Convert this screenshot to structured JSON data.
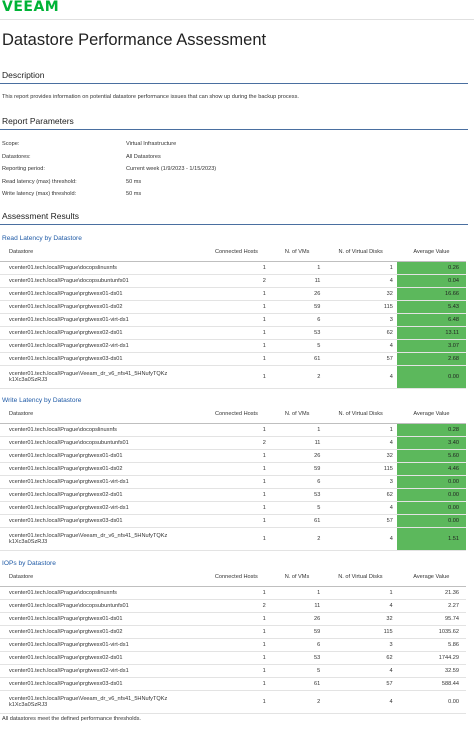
{
  "brand": "VEEAM",
  "title": "Datastore Performance Assessment",
  "description": {
    "heading": "Description",
    "text": "This report provides information on potential datastore performance issues that can show up during the backup process."
  },
  "parameters": {
    "heading": "Report Parameters",
    "rows": [
      {
        "key": "Scope:",
        "value": "Virtual Infrastructure"
      },
      {
        "key": "Datastores:",
        "value": "All Datastores"
      },
      {
        "key": "Reporting period:",
        "value": "Current week (1/9/2023 - 1/15/2023)"
      },
      {
        "key": "Read latency (max) threshold:",
        "value": "50 ms"
      },
      {
        "key": "Write latency (max) threshold:",
        "value": "50 ms"
      }
    ]
  },
  "results_heading": "Assessment Results",
  "columns": [
    "Datastore",
    "Connected Hosts",
    "N. of VMs",
    "N. of Virtual Disks",
    "Average Value"
  ],
  "highlight_color": "#5cb85c",
  "tables": [
    {
      "title": "Read Latency by Datastore",
      "highlight": true,
      "rows": [
        {
          "ds": "vcenter01.tech.local\\Prague\\docopslinuxnfs",
          "hosts": "1",
          "vms": "1",
          "disks": "1",
          "avg": "0.26"
        },
        {
          "ds": "vcenter01.tech.local\\Prague\\docopsubuntunfs01",
          "hosts": "2",
          "vms": "11",
          "disks": "4",
          "avg": "0.04"
        },
        {
          "ds": "vcenter01.tech.local\\Prague\\prgtwesx01-ds01",
          "hosts": "1",
          "vms": "26",
          "disks": "32",
          "avg": "16.66"
        },
        {
          "ds": "vcenter01.tech.local\\Prague\\prgtwesx01-ds02",
          "hosts": "1",
          "vms": "59",
          "disks": "115",
          "avg": "5.43"
        },
        {
          "ds": "vcenter01.tech.local\\Prague\\prgtwesx01-virt-ds1",
          "hosts": "1",
          "vms": "6",
          "disks": "3",
          "avg": "6.48"
        },
        {
          "ds": "vcenter01.tech.local\\Prague\\prgtwesx02-ds01",
          "hosts": "1",
          "vms": "53",
          "disks": "62",
          "avg": "13.11"
        },
        {
          "ds": "vcenter01.tech.local\\Prague\\prgtwesx02-virt-ds1",
          "hosts": "1",
          "vms": "5",
          "disks": "4",
          "avg": "3.07"
        },
        {
          "ds": "vcenter01.tech.local\\Prague\\prgtwesx03-ds01",
          "hosts": "1",
          "vms": "61",
          "disks": "57",
          "avg": "2.68"
        },
        {
          "ds": "vcenter01.tech.local\\Prague\\Veeam_dr_v6_nfs41_5HNufyTQKz k1Xc3a0SzRJ3",
          "hosts": "1",
          "vms": "2",
          "disks": "4",
          "avg": "0.00",
          "tall": true
        }
      ]
    },
    {
      "title": "Write Latency by Datastore",
      "highlight": true,
      "rows": [
        {
          "ds": "vcenter01.tech.local\\Prague\\docopslinuxnfs",
          "hosts": "1",
          "vms": "1",
          "disks": "1",
          "avg": "0.28"
        },
        {
          "ds": "vcenter01.tech.local\\Prague\\docopsubuntunfs01",
          "hosts": "2",
          "vms": "11",
          "disks": "4",
          "avg": "3.40"
        },
        {
          "ds": "vcenter01.tech.local\\Prague\\prgtwesx01-ds01",
          "hosts": "1",
          "vms": "26",
          "disks": "32",
          "avg": "5.60"
        },
        {
          "ds": "vcenter01.tech.local\\Prague\\prgtwesx01-ds02",
          "hosts": "1",
          "vms": "59",
          "disks": "115",
          "avg": "4.46"
        },
        {
          "ds": "vcenter01.tech.local\\Prague\\prgtwesx01-virt-ds1",
          "hosts": "1",
          "vms": "6",
          "disks": "3",
          "avg": "0.00"
        },
        {
          "ds": "vcenter01.tech.local\\Prague\\prgtwesx02-ds01",
          "hosts": "1",
          "vms": "53",
          "disks": "62",
          "avg": "0.00"
        },
        {
          "ds": "vcenter01.tech.local\\Prague\\prgtwesx02-virt-ds1",
          "hosts": "1",
          "vms": "5",
          "disks": "4",
          "avg": "0.00"
        },
        {
          "ds": "vcenter01.tech.local\\Prague\\prgtwesx03-ds01",
          "hosts": "1",
          "vms": "61",
          "disks": "57",
          "avg": "0.00"
        },
        {
          "ds": "vcenter01.tech.local\\Prague\\Veeam_dr_v6_nfs41_5HNufyTQKz k1Xc3a0SzRJ3",
          "hosts": "1",
          "vms": "2",
          "disks": "4",
          "avg": "1.51",
          "tall": true
        }
      ]
    },
    {
      "title": "IOPs by Datastore",
      "highlight": false,
      "rows": [
        {
          "ds": "vcenter01.tech.local\\Prague\\docopslinuxnfs",
          "hosts": "1",
          "vms": "1",
          "disks": "1",
          "avg": "21.36"
        },
        {
          "ds": "vcenter01.tech.local\\Prague\\docopsubuntunfs01",
          "hosts": "2",
          "vms": "11",
          "disks": "4",
          "avg": "2.27"
        },
        {
          "ds": "vcenter01.tech.local\\Prague\\prgtwesx01-ds01",
          "hosts": "1",
          "vms": "26",
          "disks": "32",
          "avg": "95.74"
        },
        {
          "ds": "vcenter01.tech.local\\Prague\\prgtwesx01-ds02",
          "hosts": "1",
          "vms": "59",
          "disks": "115",
          "avg": "1035.62"
        },
        {
          "ds": "vcenter01.tech.local\\Prague\\prgtwesx01-virt-ds1",
          "hosts": "1",
          "vms": "6",
          "disks": "3",
          "avg": "5.86"
        },
        {
          "ds": "vcenter01.tech.local\\Prague\\prgtwesx02-ds01",
          "hosts": "1",
          "vms": "53",
          "disks": "62",
          "avg": "1744.29"
        },
        {
          "ds": "vcenter01.tech.local\\Prague\\prgtwesx02-virt-ds1",
          "hosts": "1",
          "vms": "5",
          "disks": "4",
          "avg": "32.59"
        },
        {
          "ds": "vcenter01.tech.local\\Prague\\prgtwesx03-ds01",
          "hosts": "1",
          "vms": "61",
          "disks": "57",
          "avg": "588.44"
        },
        {
          "ds": "vcenter01.tech.local\\Prague\\Veeam_dr_v6_nfs41_5HNufyTQKz k1Xc3a0SzRJ3",
          "hosts": "1",
          "vms": "2",
          "disks": "4",
          "avg": "0.00",
          "tall": true
        }
      ]
    }
  ],
  "footer": "All datastores meet the defined performance thresholds."
}
